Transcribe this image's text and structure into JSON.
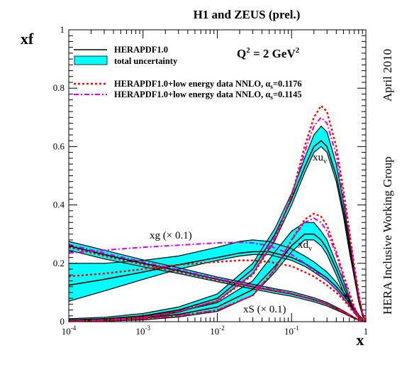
{
  "chart_data": {
    "type": "line",
    "title": "H1 and ZEUS (prel.)",
    "xlabel": "x",
    "ylabel": "xf",
    "x_scale": "log",
    "xlim": [
      0.0001,
      1
    ],
    "ylim": [
      0,
      1
    ],
    "x_tick_labels": [
      {
        "base": "10",
        "exp": "-4"
      },
      {
        "base": "10",
        "exp": "-3"
      },
      {
        "base": "10",
        "exp": "-2"
      },
      {
        "base": "10",
        "exp": "-1"
      },
      {
        "base": "1",
        "exp": ""
      }
    ],
    "y_tick_labels": [
      "0",
      "0.2",
      "0.4",
      "0.6",
      "0.8",
      "1"
    ],
    "q2_label": {
      "text": "Q",
      "sup1": "2",
      "mid": " = 2 GeV",
      "sup2": "2"
    },
    "side_label_top": "April 2010",
    "side_label_right": "HERA Inclusive Working Group",
    "legend": {
      "herapdf": "HERAPDF1.0",
      "uncertainty": "total uncertainty",
      "nnlo_1176": {
        "text": "HERAPDF1.0+low energy data NNLO, α",
        "sub": "s",
        "value": "=0.1176"
      },
      "nnlo_1145": {
        "text": "HERAPDF1.0+low energy data NNLO, α",
        "sub": "s",
        "value": "=0.1145"
      }
    },
    "colors": {
      "band": "#00ffff",
      "central": "#000000",
      "nnlo_1176": "#ff0000",
      "nnlo_1145": "#cc00ee"
    },
    "curve_labels": {
      "xuv": {
        "main": "xu",
        "sub": "v"
      },
      "xdv": {
        "main": "xd",
        "sub": "v"
      },
      "xg": "xg (× 0.1)",
      "xS": "xS (× 0.1)"
    },
    "series": [
      {
        "id": "xuv",
        "x": [
          0.0001,
          0.0003,
          0.001,
          0.003,
          0.01,
          0.03,
          0.06,
          0.1,
          0.15,
          0.2,
          0.25,
          0.3,
          0.4,
          0.5,
          0.6,
          0.7,
          0.8,
          0.9,
          1
        ],
        "central": [
          0.005,
          0.01,
          0.02,
          0.04,
          0.08,
          0.18,
          0.3,
          0.42,
          0.53,
          0.6,
          0.62,
          0.6,
          0.5,
          0.38,
          0.26,
          0.16,
          0.08,
          0.025,
          0
        ],
        "band_low": [
          0.0,
          0.005,
          0.013,
          0.032,
          0.07,
          0.165,
          0.28,
          0.4,
          0.51,
          0.58,
          0.6,
          0.58,
          0.48,
          0.36,
          0.24,
          0.15,
          0.07,
          0.02,
          0
        ],
        "band_high": [
          0.01,
          0.015,
          0.028,
          0.05,
          0.095,
          0.2,
          0.32,
          0.44,
          0.56,
          0.64,
          0.67,
          0.65,
          0.54,
          0.41,
          0.28,
          0.18,
          0.09,
          0.03,
          0
        ],
        "nnlo_1176": [
          0.002,
          0.006,
          0.015,
          0.035,
          0.07,
          0.16,
          0.28,
          0.43,
          0.6,
          0.7,
          0.74,
          0.72,
          0.6,
          0.45,
          0.31,
          0.19,
          0.1,
          0.03,
          0
        ],
        "nnlo_1145": [
          0.002,
          0.006,
          0.015,
          0.035,
          0.072,
          0.165,
          0.29,
          0.43,
          0.58,
          0.67,
          0.7,
          0.68,
          0.57,
          0.43,
          0.3,
          0.18,
          0.09,
          0.03,
          0
        ]
      },
      {
        "id": "xdv",
        "x": [
          0.0001,
          0.0003,
          0.001,
          0.003,
          0.01,
          0.03,
          0.06,
          0.1,
          0.15,
          0.2,
          0.25,
          0.3,
          0.4,
          0.5,
          0.6,
          0.7,
          0.8,
          0.9,
          1
        ],
        "central": [
          0.003,
          0.006,
          0.012,
          0.025,
          0.05,
          0.11,
          0.19,
          0.26,
          0.3,
          0.3,
          0.28,
          0.25,
          0.18,
          0.12,
          0.07,
          0.035,
          0.015,
          0.005,
          0
        ],
        "band_low": [
          0.0,
          0.002,
          0.006,
          0.016,
          0.035,
          0.09,
          0.17,
          0.24,
          0.28,
          0.28,
          0.26,
          0.23,
          0.16,
          0.1,
          0.06,
          0.03,
          0.012,
          0.004,
          0
        ],
        "band_high": [
          0.006,
          0.01,
          0.018,
          0.035,
          0.065,
          0.14,
          0.24,
          0.31,
          0.34,
          0.34,
          0.31,
          0.28,
          0.2,
          0.14,
          0.08,
          0.04,
          0.018,
          0.006,
          0
        ],
        "nnlo_1176": [
          0.002,
          0.004,
          0.01,
          0.02,
          0.04,
          0.09,
          0.18,
          0.28,
          0.35,
          0.37,
          0.36,
          0.33,
          0.24,
          0.16,
          0.1,
          0.05,
          0.02,
          0.006,
          0
        ],
        "nnlo_1145": [
          0.002,
          0.004,
          0.01,
          0.02,
          0.04,
          0.09,
          0.18,
          0.28,
          0.34,
          0.355,
          0.34,
          0.31,
          0.23,
          0.15,
          0.09,
          0.045,
          0.018,
          0.006,
          0
        ]
      },
      {
        "id": "xg_scaled",
        "x": [
          0.0001,
          0.0003,
          0.001,
          0.003,
          0.01,
          0.02,
          0.03,
          0.05,
          0.1,
          0.15,
          0.2,
          0.3,
          0.4,
          0.5,
          0.6,
          0.7,
          0.8,
          0.9,
          1
        ],
        "central": [
          0.125,
          0.145,
          0.17,
          0.195,
          0.22,
          0.235,
          0.24,
          0.24,
          0.22,
          0.2,
          0.18,
          0.15,
          0.12,
          0.09,
          0.065,
          0.04,
          0.02,
          0.007,
          0
        ],
        "band_low": [
          0.07,
          0.105,
          0.145,
          0.18,
          0.21,
          0.225,
          0.23,
          0.23,
          0.21,
          0.19,
          0.17,
          0.14,
          0.11,
          0.08,
          0.055,
          0.033,
          0.015,
          0.005,
          0
        ],
        "band_high": [
          0.2,
          0.2,
          0.21,
          0.225,
          0.255,
          0.275,
          0.28,
          0.275,
          0.25,
          0.225,
          0.205,
          0.17,
          0.135,
          0.1,
          0.075,
          0.047,
          0.025,
          0.009,
          0
        ],
        "nnlo_1176": [
          0.155,
          0.165,
          0.18,
          0.195,
          0.205,
          0.21,
          0.21,
          0.205,
          0.19,
          0.17,
          0.155,
          0.125,
          0.1,
          0.075,
          0.05,
          0.03,
          0.015,
          0.005,
          0
        ],
        "nnlo_1145": [
          0.235,
          0.245,
          0.255,
          0.262,
          0.27,
          0.272,
          0.27,
          0.26,
          0.23,
          0.2,
          0.175,
          0.14,
          0.11,
          0.08,
          0.055,
          0.033,
          0.016,
          0.005,
          0
        ]
      },
      {
        "id": "xS_scaled",
        "x": [
          0.0001,
          0.0003,
          0.001,
          0.003,
          0.01,
          0.03,
          0.06,
          0.1,
          0.2,
          0.3,
          0.4,
          0.5,
          0.6,
          0.7,
          0.8,
          0.9,
          1
        ],
        "central": [
          0.26,
          0.23,
          0.2,
          0.175,
          0.145,
          0.12,
          0.105,
          0.095,
          0.075,
          0.06,
          0.045,
          0.033,
          0.022,
          0.013,
          0.006,
          0.002,
          0
        ],
        "band_low": [
          0.245,
          0.215,
          0.188,
          0.165,
          0.137,
          0.112,
          0.097,
          0.087,
          0.068,
          0.054,
          0.04,
          0.029,
          0.019,
          0.011,
          0.005,
          0.0015,
          0
        ],
        "band_high": [
          0.275,
          0.245,
          0.212,
          0.185,
          0.153,
          0.128,
          0.113,
          0.103,
          0.082,
          0.066,
          0.05,
          0.037,
          0.025,
          0.015,
          0.007,
          0.0025,
          0
        ],
        "nnlo_1176": [
          0.255,
          0.225,
          0.195,
          0.17,
          0.142,
          0.118,
          0.105,
          0.095,
          0.075,
          0.06,
          0.045,
          0.033,
          0.022,
          0.013,
          0.006,
          0.002,
          0
        ],
        "nnlo_1145": [
          0.265,
          0.235,
          0.205,
          0.178,
          0.148,
          0.123,
          0.108,
          0.097,
          0.077,
          0.061,
          0.046,
          0.034,
          0.023,
          0.013,
          0.006,
          0.002,
          0
        ]
      }
    ]
  }
}
